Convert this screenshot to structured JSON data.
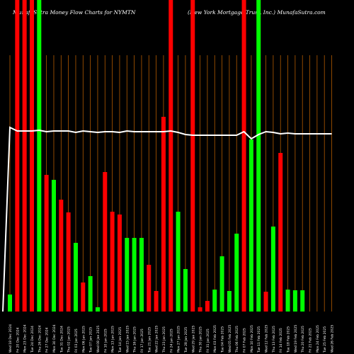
{
  "header": {
    "left": "MunafaSutra  Money Flow  Charts for NYMTN",
    "right": "(New  York Mortgage   Trust,  Inc.) MunafaSutra.com"
  },
  "colors": {
    "background": "#000000",
    "up": "#00ff00",
    "down": "#ff0000",
    "grid": "#b25a00",
    "line": "#ffffff"
  },
  "chart_data": {
    "type": "bar",
    "title": "MunafaSutra  Money Flow  Charts for NYMTN",
    "subtitle": "(New  York Mortgage   Trust,  Inc.) MunafaSutra.com",
    "categories": [
      "Wed 18 Dec 2024",
      "Fri 20 Dec 2024",
      "Mon 23 Dec 2024",
      "Tue 24 Dec 2024",
      "Thu 26 Dec 2024",
      "Fri 27 Dec 2024",
      "Mon 30 Dec 2024",
      "Tue 31 Dec 2024",
      "Thu 02 Jan 2025",
      "Fri 03 Jan 2025",
      "Mon 06 Jan 2025",
      "Tue 07 Jan 2025",
      "Wed 08 Jan 2025",
      "Fri 10 Jan 2025",
      "Mon 13 Jan 2025",
      "Tue 14 Jan 2025",
      "Wed 15 Jan 2025",
      "Thu 16 Jan 2025",
      "Fri 17 Jan 2025",
      "Tue 21 Jan 2025",
      "Wed 22 Jan 2025",
      "Thu 23 Jan 2025",
      "Fri 24 Jan 2025",
      "Mon 27 Jan 2025",
      "Tue 28 Jan 2025",
      "Wed 29 Jan 2025",
      "Thu 30 Jan 2025",
      "Fri 31 Jan 2025",
      "Mon 03 Feb 2025",
      "Tue 04 Feb 2025",
      "Wed 05 Feb 2025",
      "Thu 06 Feb 2025",
      "Fri 07 Feb 2025",
      "Mon 10 Feb 2025",
      "Tue 11 Feb 2025",
      "Wed 12 Feb 2025",
      "Thu 13 Feb 2025",
      "Fri 14 Feb 2025",
      "Tue 18 Feb 2025",
      "Wed 19 Feb 2025",
      "Thu 20 Feb 2025",
      "Fri 21 Feb 2025",
      "Mon 24 Feb 2025",
      "Tue 25 Feb 2025",
      "Wed 26 Feb 2025"
    ],
    "x_tick_labels": [
      "18-12-2024",
      "20-12-2024",
      "23-12-2024",
      "24-12-2024",
      "26-12-2024",
      "27-12-2024",
      "30-12-2024",
      "31-12-2024",
      "02-01-2025",
      "03-01-2025",
      "06-01-2025",
      "07-01-2025",
      "08-01-2025",
      "10-01-2025",
      "13-01-2025",
      "14-01-2025",
      "15-01-2025",
      "16-01-2025",
      "17-01-2025",
      "21-01-2025",
      "22-01-2025",
      "23-01-2025",
      "24-01-2025",
      "27-01-2025",
      "28-01-2025",
      "29-01-2025",
      "30-01-2025",
      "31-01-2025",
      "03-02-2025",
      "04-02-2025",
      "05-02-2025",
      "06-02-2025",
      "07-02-2025",
      "10-02-2025",
      "11-02-2025",
      "12-02-2025",
      "13-02-2025",
      "14-02-2025",
      "18-02-2025",
      "19-02-2025",
      "20-02-2025",
      "21-02-2025",
      "24-02-2025",
      "25-02-2025",
      "26-02-2025"
    ],
    "ylim": [
      0,
      440
    ],
    "series": [
      {
        "values": [
          24,
          440,
          440,
          440,
          440,
          193,
          186,
          158,
          140,
          97,
          41,
          50,
          6,
          197,
          141,
          137,
          104,
          104,
          104,
          66,
          29,
          275,
          440,
          141,
          60,
          440,
          6,
          15,
          31,
          78,
          29,
          110,
          440,
          243,
          440,
          28,
          120,
          224,
          31,
          30,
          30,
          0,
          0,
          0,
          0
        ],
        "directions": [
          "up",
          "down",
          "down",
          "down",
          "up",
          "down",
          "up",
          "down",
          "down",
          "up",
          "down",
          "up",
          "up",
          "down",
          "down",
          "down",
          "up",
          "up",
          "up",
          "down",
          "down",
          "down",
          "down",
          "up",
          "up",
          "down",
          "down",
          "down",
          "up",
          "up",
          "up",
          "up",
          "down",
          "up",
          "up",
          "down",
          "up",
          "down",
          "up",
          "up",
          "up",
          "up",
          "up",
          "up",
          "up"
        ]
      }
    ],
    "flow_line": [
      260,
      255,
      255,
      255,
      256,
      254,
      255,
      255,
      255,
      253,
      255,
      254,
      253,
      254,
      254,
      253,
      255,
      254,
      254,
      254,
      254,
      254,
      255,
      253,
      250,
      249,
      249,
      249,
      249,
      249,
      249,
      249,
      254,
      244,
      250,
      254,
      253,
      251,
      252,
      251,
      251,
      251,
      251,
      251,
      251
    ],
    "flow_line_start": 0,
    "grid": "vertical"
  }
}
